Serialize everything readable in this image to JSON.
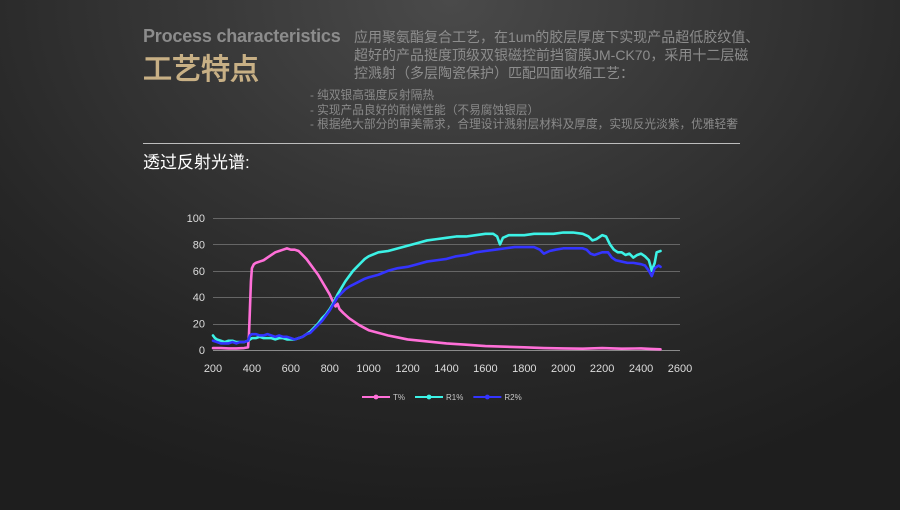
{
  "header": {
    "title_en": "Process characteristics",
    "title_cn": "工艺特点",
    "intro_lines": [
      "应用聚氨酯复合工艺，在1um的胶层厚度下实现产品超低胶纹值、",
      "超好的产品挺度顶级双银磁控前挡窗膜JM-CK70，采用十二层磁",
      "控溅射（多层陶瓷保护）匹配四面收缩工艺："
    ],
    "bullets": [
      "- 纯双银高强度反射隔热",
      "- 实现产品良好的耐候性能（不易腐蚀银层）",
      "- 根据绝大部分的审美需求，合理设计溅射层材料及厚度，实现反光淡紫，优雅轻奢"
    ]
  },
  "section_label": "透过反射光谱:",
  "colors": {
    "title_accent": "#c8b085",
    "gridline": "#666666"
  },
  "chart_data": {
    "type": "line",
    "xlim": [
      200,
      2600
    ],
    "ylim": [
      0,
      100
    ],
    "x_ticks": [
      200,
      400,
      600,
      800,
      1000,
      1200,
      1400,
      1600,
      1800,
      2000,
      2200,
      2400,
      2600
    ],
    "y_ticks": [
      0,
      20,
      40,
      60,
      80,
      100
    ],
    "grid": "horizontal",
    "legend": "bottom",
    "series": [
      {
        "name": "T%",
        "color": "#ff6fd8",
        "points": [
          [
            200,
            1.5
          ],
          [
            240,
            1.5
          ],
          [
            280,
            1.2
          ],
          [
            320,
            1.2
          ],
          [
            360,
            1.5
          ],
          [
            380,
            2
          ],
          [
            385,
            12
          ],
          [
            390,
            32
          ],
          [
            395,
            52
          ],
          [
            400,
            62
          ],
          [
            410,
            65
          ],
          [
            420,
            66
          ],
          [
            440,
            67
          ],
          [
            460,
            68
          ],
          [
            480,
            70
          ],
          [
            500,
            72
          ],
          [
            520,
            74
          ],
          [
            540,
            75
          ],
          [
            560,
            76
          ],
          [
            580,
            77
          ],
          [
            600,
            76
          ],
          [
            620,
            76
          ],
          [
            640,
            75
          ],
          [
            660,
            72
          ],
          [
            680,
            69
          ],
          [
            700,
            65
          ],
          [
            720,
            61
          ],
          [
            740,
            57
          ],
          [
            760,
            52
          ],
          [
            780,
            47
          ],
          [
            800,
            42
          ],
          [
            815,
            37
          ],
          [
            830,
            33
          ],
          [
            840,
            35
          ],
          [
            850,
            31
          ],
          [
            870,
            28
          ],
          [
            900,
            24
          ],
          [
            950,
            19
          ],
          [
            1000,
            15
          ],
          [
            1050,
            13
          ],
          [
            1100,
            11
          ],
          [
            1150,
            9.5
          ],
          [
            1200,
            8
          ],
          [
            1300,
            6.5
          ],
          [
            1400,
            5
          ],
          [
            1500,
            4
          ],
          [
            1600,
            3
          ],
          [
            1700,
            2.5
          ],
          [
            1800,
            2
          ],
          [
            1900,
            1.5
          ],
          [
            2000,
            1.2
          ],
          [
            2100,
            1
          ],
          [
            2200,
            1.5
          ],
          [
            2300,
            1
          ],
          [
            2400,
            1.2
          ],
          [
            2450,
            0.8
          ],
          [
            2500,
            0.5
          ]
        ]
      },
      {
        "name": "R1%",
        "color": "#3cf2e6",
        "points": [
          [
            200,
            11
          ],
          [
            210,
            9
          ],
          [
            220,
            8
          ],
          [
            240,
            7
          ],
          [
            260,
            6
          ],
          [
            280,
            7
          ],
          [
            300,
            7
          ],
          [
            320,
            6
          ],
          [
            340,
            6
          ],
          [
            360,
            6
          ],
          [
            380,
            7
          ],
          [
            400,
            9
          ],
          [
            420,
            9
          ],
          [
            440,
            10
          ],
          [
            460,
            9
          ],
          [
            480,
            9
          ],
          [
            500,
            9
          ],
          [
            520,
            8
          ],
          [
            540,
            9
          ],
          [
            560,
            9
          ],
          [
            580,
            8
          ],
          [
            600,
            8
          ],
          [
            620,
            8
          ],
          [
            640,
            9
          ],
          [
            660,
            10
          ],
          [
            680,
            12
          ],
          [
            700,
            14
          ],
          [
            720,
            17
          ],
          [
            740,
            20
          ],
          [
            760,
            24
          ],
          [
            780,
            27
          ],
          [
            800,
            31
          ],
          [
            820,
            36
          ],
          [
            840,
            42
          ],
          [
            860,
            47
          ],
          [
            880,
            52
          ],
          [
            900,
            56
          ],
          [
            920,
            60
          ],
          [
            940,
            63
          ],
          [
            960,
            66
          ],
          [
            980,
            69
          ],
          [
            1000,
            71
          ],
          [
            1050,
            74
          ],
          [
            1100,
            75
          ],
          [
            1150,
            77
          ],
          [
            1200,
            79
          ],
          [
            1250,
            81
          ],
          [
            1300,
            83
          ],
          [
            1350,
            84
          ],
          [
            1400,
            85
          ],
          [
            1450,
            86
          ],
          [
            1500,
            86
          ],
          [
            1550,
            87
          ],
          [
            1600,
            88
          ],
          [
            1640,
            88
          ],
          [
            1660,
            86
          ],
          [
            1675,
            80
          ],
          [
            1690,
            85
          ],
          [
            1720,
            87
          ],
          [
            1760,
            87
          ],
          [
            1800,
            87
          ],
          [
            1850,
            88
          ],
          [
            1900,
            88
          ],
          [
            1950,
            88
          ],
          [
            2000,
            89
          ],
          [
            2050,
            89
          ],
          [
            2100,
            88
          ],
          [
            2130,
            86
          ],
          [
            2150,
            83
          ],
          [
            2170,
            84
          ],
          [
            2200,
            87
          ],
          [
            2220,
            86
          ],
          [
            2240,
            80
          ],
          [
            2260,
            76
          ],
          [
            2280,
            74
          ],
          [
            2300,
            74
          ],
          [
            2320,
            72
          ],
          [
            2340,
            73
          ],
          [
            2360,
            70
          ],
          [
            2380,
            72
          ],
          [
            2400,
            73
          ],
          [
            2420,
            71
          ],
          [
            2440,
            68
          ],
          [
            2455,
            60
          ],
          [
            2470,
            66
          ],
          [
            2480,
            74
          ],
          [
            2500,
            75
          ]
        ]
      },
      {
        "name": "R2%",
        "color": "#3434ff",
        "points": [
          [
            200,
            7
          ],
          [
            220,
            6
          ],
          [
            240,
            5
          ],
          [
            260,
            5
          ],
          [
            280,
            5
          ],
          [
            300,
            6
          ],
          [
            320,
            5
          ],
          [
            340,
            6
          ],
          [
            360,
            6
          ],
          [
            380,
            7
          ],
          [
            390,
            11
          ],
          [
            400,
            12
          ],
          [
            420,
            12
          ],
          [
            440,
            11
          ],
          [
            460,
            11
          ],
          [
            480,
            12
          ],
          [
            500,
            11
          ],
          [
            520,
            10
          ],
          [
            540,
            11
          ],
          [
            560,
            10
          ],
          [
            580,
            10
          ],
          [
            600,
            9
          ],
          [
            620,
            8
          ],
          [
            640,
            9
          ],
          [
            660,
            10
          ],
          [
            680,
            12
          ],
          [
            700,
            13
          ],
          [
            720,
            16
          ],
          [
            740,
            19
          ],
          [
            760,
            22
          ],
          [
            780,
            26
          ],
          [
            800,
            30
          ],
          [
            820,
            35
          ],
          [
            840,
            40
          ],
          [
            860,
            43
          ],
          [
            880,
            46
          ],
          [
            900,
            48
          ],
          [
            940,
            51
          ],
          [
            980,
            54
          ],
          [
            1000,
            55
          ],
          [
            1050,
            57
          ],
          [
            1100,
            60
          ],
          [
            1150,
            62
          ],
          [
            1200,
            63
          ],
          [
            1250,
            65
          ],
          [
            1300,
            67
          ],
          [
            1350,
            68
          ],
          [
            1400,
            69
          ],
          [
            1450,
            71
          ],
          [
            1500,
            72
          ],
          [
            1550,
            74
          ],
          [
            1600,
            75
          ],
          [
            1650,
            76
          ],
          [
            1700,
            77
          ],
          [
            1750,
            78
          ],
          [
            1800,
            78
          ],
          [
            1850,
            78
          ],
          [
            1880,
            76
          ],
          [
            1900,
            73
          ],
          [
            1930,
            75
          ],
          [
            1960,
            76
          ],
          [
            2000,
            77
          ],
          [
            2050,
            77
          ],
          [
            2100,
            77
          ],
          [
            2120,
            76
          ],
          [
            2140,
            73
          ],
          [
            2160,
            72
          ],
          [
            2200,
            74
          ],
          [
            2230,
            74
          ],
          [
            2250,
            70
          ],
          [
            2270,
            68
          ],
          [
            2300,
            67
          ],
          [
            2330,
            66
          ],
          [
            2360,
            66
          ],
          [
            2400,
            65
          ],
          [
            2420,
            64
          ],
          [
            2440,
            60
          ],
          [
            2455,
            56
          ],
          [
            2470,
            62
          ],
          [
            2490,
            64
          ],
          [
            2500,
            63
          ]
        ]
      }
    ]
  }
}
